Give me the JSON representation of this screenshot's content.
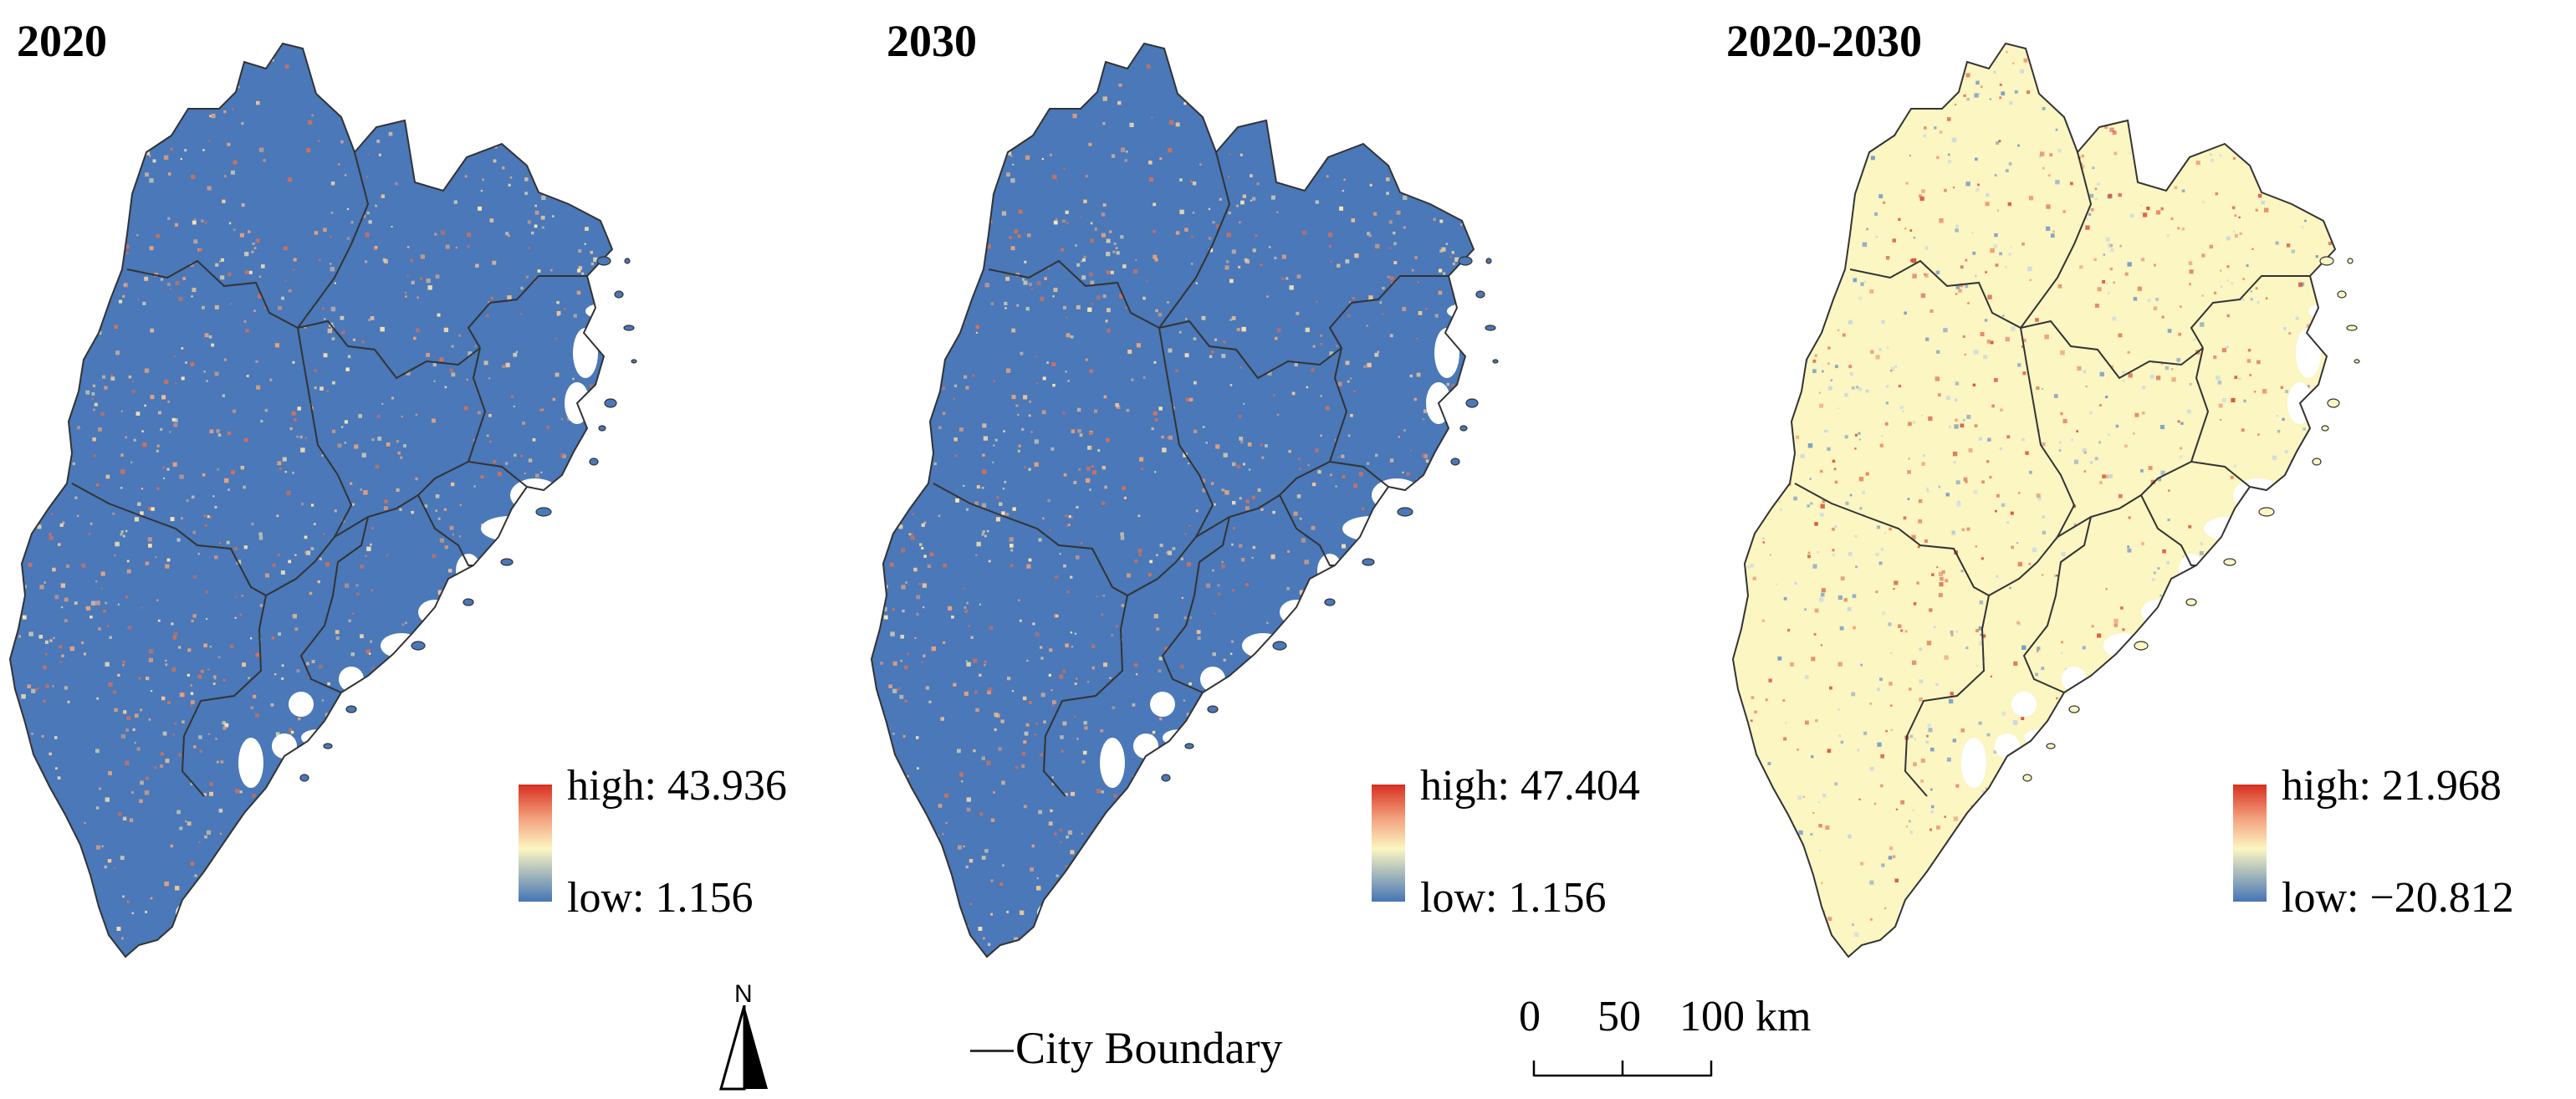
{
  "panels": [
    {
      "title": "2020",
      "legend_high": "high: 43.936",
      "legend_low": "low: 1.156",
      "fill_color": "#4a78b8",
      "speckle_colors": [
        "#e9a27e",
        "#f4c79a",
        "#d4715a",
        "#fbe6b2"
      ]
    },
    {
      "title": "2030",
      "legend_high": "high: 47.404",
      "legend_low": "low: 1.156",
      "fill_color": "#4a78b8",
      "speckle_colors": [
        "#e9a27e",
        "#f4c79a",
        "#d4715a",
        "#fbe6b2"
      ]
    },
    {
      "title": "2020-2030",
      "legend_high": "high: 21.968",
      "legend_low": "low: −20.812",
      "fill_color": "#fbf6c2",
      "speckle_colors": [
        "#d8583f",
        "#e98a66",
        "#7a9ec8",
        "#c9d8e0"
      ]
    }
  ],
  "colors": {
    "ramp_high": "#d7301f",
    "ramp_mid": "#fbf6c2",
    "ramp_low": "#4575b4",
    "boundary": "#333333"
  },
  "north_arrow": {
    "label": "N",
    "icon": "north-arrow-icon"
  },
  "boundary_legend": {
    "label": "City Boundary"
  },
  "scale_bar": {
    "ticks": [
      "0",
      "50",
      "100 km"
    ]
  }
}
